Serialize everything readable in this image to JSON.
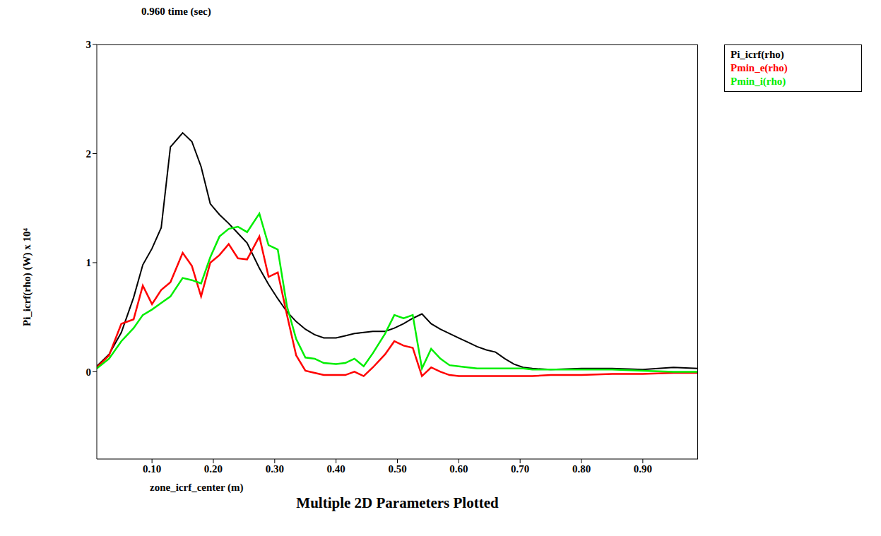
{
  "chart_data": {
    "type": "line",
    "subtitle": "0.960 time (sec)",
    "title": "Multiple 2D Parameters Plotted",
    "x_label": "zone_icrf_center (m)",
    "y_label": "Pi_icrf(rho) (W) x 10⁴",
    "x": [
      0.01,
      0.03,
      0.05,
      0.07,
      0.085,
      0.1,
      0.115,
      0.13,
      0.15,
      0.165,
      0.18,
      0.195,
      0.21,
      0.225,
      0.24,
      0.255,
      0.275,
      0.29,
      0.305,
      0.32,
      0.335,
      0.35,
      0.365,
      0.38,
      0.4,
      0.415,
      0.43,
      0.445,
      0.46,
      0.48,
      0.495,
      0.51,
      0.525,
      0.54,
      0.555,
      0.57,
      0.585,
      0.6,
      0.615,
      0.63,
      0.645,
      0.66,
      0.675,
      0.69,
      0.705,
      0.72,
      0.75,
      0.8,
      0.85,
      0.9,
      0.95,
      0.99
    ],
    "series": [
      {
        "name": "Pi_icrf(rho)",
        "color": "#000000",
        "values": [
          0.05,
          0.16,
          0.36,
          0.68,
          0.98,
          1.13,
          1.32,
          2.06,
          2.19,
          2.11,
          1.88,
          1.54,
          1.44,
          1.36,
          1.27,
          1.18,
          0.95,
          0.8,
          0.67,
          0.55,
          0.46,
          0.39,
          0.34,
          0.31,
          0.31,
          0.33,
          0.35,
          0.36,
          0.37,
          0.37,
          0.4,
          0.44,
          0.49,
          0.53,
          0.44,
          0.39,
          0.35,
          0.31,
          0.27,
          0.23,
          0.2,
          0.18,
          0.12,
          0.07,
          0.04,
          0.03,
          0.02,
          0.03,
          0.03,
          0.02,
          0.04,
          0.03
        ]
      },
      {
        "name": "Pmin_e(rho)",
        "color": "#ff0000",
        "values": [
          0.04,
          0.15,
          0.44,
          0.48,
          0.79,
          0.62,
          0.75,
          0.82,
          1.09,
          0.97,
          0.69,
          1.0,
          1.07,
          1.17,
          1.04,
          1.03,
          1.24,
          0.87,
          0.91,
          0.52,
          0.15,
          0.01,
          -0.01,
          -0.03,
          -0.03,
          -0.03,
          0.0,
          -0.04,
          0.04,
          0.16,
          0.28,
          0.24,
          0.22,
          -0.04,
          0.04,
          0.0,
          -0.03,
          -0.04,
          -0.04,
          -0.04,
          -0.04,
          -0.04,
          -0.04,
          -0.04,
          -0.04,
          -0.04,
          -0.03,
          -0.03,
          -0.02,
          -0.02,
          -0.01,
          -0.01
        ]
      },
      {
        "name": "Pmin_i(rho)",
        "color": "#00ee00",
        "values": [
          0.03,
          0.12,
          0.28,
          0.4,
          0.52,
          0.57,
          0.63,
          0.69,
          0.86,
          0.84,
          0.81,
          1.05,
          1.24,
          1.31,
          1.33,
          1.28,
          1.45,
          1.16,
          1.12,
          0.6,
          0.3,
          0.13,
          0.12,
          0.08,
          0.07,
          0.08,
          0.12,
          0.05,
          0.17,
          0.35,
          0.52,
          0.49,
          0.52,
          0.03,
          0.21,
          0.12,
          0.06,
          0.05,
          0.04,
          0.03,
          0.03,
          0.03,
          0.03,
          0.03,
          0.03,
          0.02,
          0.02,
          0.02,
          0.02,
          0.01,
          0.0,
          0.0
        ]
      }
    ],
    "xlim": [
      0.01,
      0.99
    ],
    "ylim": [
      -0.8,
      3
    ],
    "xticks": [
      {
        "value": 0.1,
        "label": "0.10"
      },
      {
        "value": 0.2,
        "label": "0.20"
      },
      {
        "value": 0.3,
        "label": "0.30"
      },
      {
        "value": 0.4,
        "label": "0.40"
      },
      {
        "value": 0.5,
        "label": "0.50"
      },
      {
        "value": 0.6,
        "label": "0.60"
      },
      {
        "value": 0.7,
        "label": "0.70"
      },
      {
        "value": 0.8,
        "label": "0.80"
      },
      {
        "value": 0.9,
        "label": "0.90"
      }
    ],
    "yticks": [
      0,
      1,
      2,
      3
    ],
    "grid": false,
    "legend": "right"
  }
}
